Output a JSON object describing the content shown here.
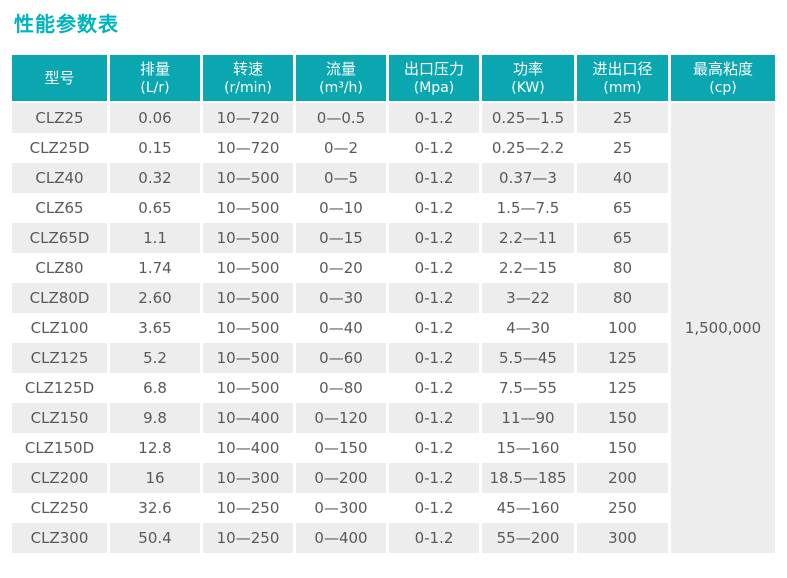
{
  "page_title": "性能参数表",
  "colors": {
    "accent_teal": "#0aa7b0",
    "title_teal": "#00b4be",
    "stripe_gray": "#ecedec",
    "merged_gray": "#edeeee",
    "body_text": "#58595b",
    "header_text": "#ffffff"
  },
  "chart_data": {
    "type": "table",
    "title": "性能参数表",
    "columns": [
      {
        "name": "型号",
        "unit": ""
      },
      {
        "name": "排量",
        "unit": "(L/r)"
      },
      {
        "name": "转速",
        "unit": "(r/min)"
      },
      {
        "name": "流量",
        "unit": "(m³/h)"
      },
      {
        "name": "出口压力",
        "unit": "(Mpa)"
      },
      {
        "name": "功率",
        "unit": "(KW)"
      },
      {
        "name": "进出口径",
        "unit": "(mm)"
      },
      {
        "name": "最高粘度",
        "unit": "(cp)"
      }
    ],
    "rows": [
      [
        "CLZ25",
        "0.06",
        "10—720",
        "0—0.5",
        "0-1.2",
        "0.25—1.5",
        "25"
      ],
      [
        "CLZ25D",
        "0.15",
        "10—720",
        "0—2",
        "0-1.2",
        "0.25—2.2",
        "25"
      ],
      [
        "CLZ40",
        "0.32",
        "10—500",
        "0—5",
        "0-1.2",
        "0.37—3",
        "40"
      ],
      [
        "CLZ65",
        "0.65",
        "10—500",
        "0—10",
        "0-1.2",
        "1.5—7.5",
        "65"
      ],
      [
        "CLZ65D",
        "1.1",
        "10—500",
        "0—15",
        "0-1.2",
        "2.2—11",
        "65"
      ],
      [
        "CLZ80",
        "1.74",
        "10—500",
        "0—20",
        "0-1.2",
        "2.2—15",
        "80"
      ],
      [
        "CLZ80D",
        "2.60",
        "10—500",
        "0—30",
        "0-1.2",
        "3—22",
        "80"
      ],
      [
        "CLZ100",
        "3.65",
        "10—500",
        "0—40",
        "0-1.2",
        "4—30",
        "100"
      ],
      [
        "CLZ125",
        "5.2",
        "10—500",
        "0—60",
        "0-1.2",
        "5.5—45",
        "125"
      ],
      [
        "CLZ125D",
        "6.8",
        "10—500",
        "0—80",
        "0-1.2",
        "7.5—55",
        "125"
      ],
      [
        "CLZ150",
        "9.8",
        "10—400",
        "0—120",
        "0-1.2",
        "11—90",
        "150"
      ],
      [
        "CLZ150D",
        "12.8",
        "10—400",
        "0—150",
        "0-1.2",
        "15—160",
        "150"
      ],
      [
        "CLZ200",
        "16",
        "10—300",
        "0—200",
        "0-1.2",
        "18.5—185",
        "200"
      ],
      [
        "CLZ250",
        "32.6",
        "10—250",
        "0—300",
        "0-1.2",
        "45—160",
        "250"
      ],
      [
        "CLZ300",
        "50.4",
        "10—250",
        "0—400",
        "0-1.2",
        "55—200",
        "300"
      ]
    ],
    "merged_last_column_value": "1,500,000"
  }
}
